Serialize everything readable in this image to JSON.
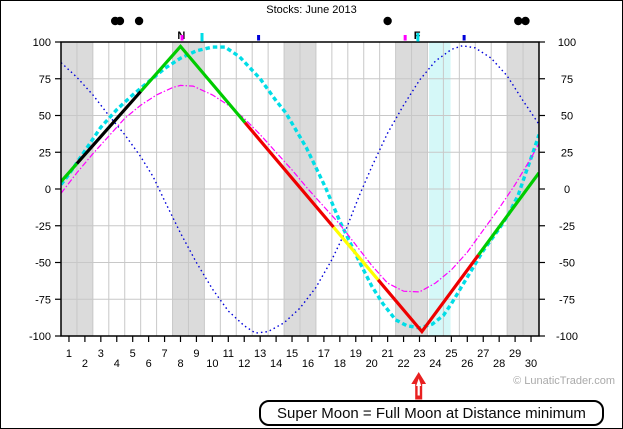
{
  "title": "Stocks: June 2013",
  "copyright": "© LunaticTrader.com",
  "annotation": "Super Moon = Full Moon at Distance minimum",
  "colors": {
    "background": "#ffffff",
    "grid": "#c8c8c8",
    "weekend_band": "#dbdbdb",
    "highlight_band": "#d5f8f8",
    "axis": "#000000",
    "blue_series": "#0000d9",
    "cyan_series": "#00dde6",
    "magenta_series": "#ff00ff",
    "green_segment": "#00cc00",
    "black_segment": "#000000",
    "red_segment": "#ee0000",
    "yellow_segment": "#ffff00",
    "arrow_red": "#e82020",
    "copyright_gray": "#aaaaaa"
  },
  "chart_data": {
    "type": "line",
    "title": "Stocks: June 2013",
    "grid": true,
    "x_axis": {
      "range_days": [
        0.5,
        30.5
      ],
      "day_labels": [
        1,
        2,
        3,
        4,
        5,
        6,
        7,
        8,
        9,
        10,
        11,
        12,
        13,
        14,
        15,
        16,
        17,
        18,
        19,
        20,
        21,
        22,
        23,
        24,
        25,
        26,
        27,
        28,
        29,
        30
      ]
    },
    "y_axis": {
      "range": [
        -100,
        100
      ],
      "ticks": [
        100,
        75,
        50,
        25,
        0,
        -25,
        -50,
        -75,
        -100
      ]
    },
    "weekend_bands_days": [
      [
        1,
        2
      ],
      [
        8,
        9
      ],
      [
        15,
        16
      ],
      [
        22,
        23
      ],
      [
        29,
        30
      ]
    ],
    "highlight_band": {
      "start_day": 23.6,
      "end_day": 24.95
    },
    "series": [
      {
        "name": "blue-dotted-cycle",
        "style": "dotted",
        "width": 1.4,
        "color_key": "blue_series",
        "points": [
          [
            0.5,
            86
          ],
          [
            1.5,
            76
          ],
          [
            2.5,
            64
          ],
          [
            3.5,
            50
          ],
          [
            4.5,
            37
          ],
          [
            5.5,
            22
          ],
          [
            6.3,
            8
          ],
          [
            7,
            -8
          ],
          [
            8,
            -30
          ],
          [
            9,
            -50
          ],
          [
            10,
            -68
          ],
          [
            11,
            -83
          ],
          [
            12,
            -93
          ],
          [
            12.7,
            -98
          ],
          [
            13.5,
            -97
          ],
          [
            14.5,
            -91
          ],
          [
            15.5,
            -81
          ],
          [
            16.5,
            -67
          ],
          [
            17.5,
            -48
          ],
          [
            18.3,
            -30
          ],
          [
            19.2,
            -5
          ],
          [
            20,
            15
          ],
          [
            21,
            38
          ],
          [
            22,
            57
          ],
          [
            23,
            74
          ],
          [
            24,
            87
          ],
          [
            25,
            95
          ],
          [
            25.7,
            97.5
          ],
          [
            26.5,
            96
          ],
          [
            27.5,
            89
          ],
          [
            28.5,
            77
          ],
          [
            29.5,
            60
          ],
          [
            30.5,
            44
          ]
        ]
      },
      {
        "name": "cyan-dashed-cycle",
        "style": "dashed",
        "width": 3.4,
        "color_key": "cyan_series",
        "points": [
          [
            0.5,
            3
          ],
          [
            1,
            10
          ],
          [
            2,
            26
          ],
          [
            3,
            42
          ],
          [
            4,
            54
          ],
          [
            5,
            64
          ],
          [
            6,
            73
          ],
          [
            7,
            82
          ],
          [
            8,
            89
          ],
          [
            9,
            94
          ],
          [
            10,
            96.5
          ],
          [
            10.8,
            96.5
          ],
          [
            11.7,
            90
          ],
          [
            13,
            75
          ],
          [
            14,
            60
          ],
          [
            14.6,
            52
          ],
          [
            15.9,
            28
          ],
          [
            17.1,
            1
          ],
          [
            18,
            -22
          ],
          [
            19.2,
            -49
          ],
          [
            20,
            -66
          ],
          [
            20.7,
            -78
          ],
          [
            21.5,
            -89
          ],
          [
            22.2,
            -93
          ],
          [
            23,
            -94.5
          ],
          [
            23.8,
            -92
          ],
          [
            24.5,
            -86
          ],
          [
            25,
            -78
          ],
          [
            26,
            -60
          ],
          [
            27,
            -42
          ],
          [
            28,
            -27
          ],
          [
            28.6,
            -17
          ],
          [
            29.2,
            -4
          ],
          [
            29.7,
            12
          ],
          [
            30.1,
            24
          ],
          [
            30.5,
            37
          ]
        ]
      },
      {
        "name": "magenta-thin-cycle",
        "style": "dashdot",
        "width": 1.2,
        "color_key": "magenta_series",
        "points": [
          [
            0.5,
            -3
          ],
          [
            1.5,
            11
          ],
          [
            2.5,
            24
          ],
          [
            3.5,
            36
          ],
          [
            4.5,
            48
          ],
          [
            5.5,
            57
          ],
          [
            6.5,
            64
          ],
          [
            7.5,
            69
          ],
          [
            8,
            70.5
          ],
          [
            8.8,
            70
          ],
          [
            10,
            64
          ],
          [
            11,
            57
          ],
          [
            12,
            48
          ],
          [
            13,
            37
          ],
          [
            14,
            25
          ],
          [
            15,
            13
          ],
          [
            16,
            0
          ],
          [
            17,
            -12
          ],
          [
            18,
            -24
          ],
          [
            19,
            -38
          ],
          [
            20,
            -52
          ],
          [
            21,
            -64
          ],
          [
            22,
            -69.5
          ],
          [
            23,
            -70
          ],
          [
            24,
            -64
          ],
          [
            25,
            -55
          ],
          [
            26,
            -43
          ],
          [
            27,
            -28
          ],
          [
            28,
            -13
          ],
          [
            29,
            3
          ],
          [
            30,
            21
          ],
          [
            30.5,
            31
          ]
        ]
      }
    ],
    "segmented_line": {
      "name": "market-projection-line",
      "width": 3.2,
      "vertices": [
        [
          0.5,
          5
        ],
        [
          8,
          97
        ],
        [
          23.15,
          -97
        ],
        [
          30.5,
          11
        ]
      ],
      "color_segments": [
        {
          "from": 0.5,
          "to": 1.5,
          "color_key": "green_segment"
        },
        {
          "from": 1.5,
          "to": 5.5,
          "color_key": "black_segment"
        },
        {
          "from": 5.5,
          "to": 12.05,
          "color_key": "green_segment"
        },
        {
          "from": 12.05,
          "to": 17.6,
          "color_key": "red_segment"
        },
        {
          "from": 17.6,
          "to": 20.4,
          "color_key": "yellow_segment"
        },
        {
          "from": 20.4,
          "to": 26.7,
          "color_key": "red_segment"
        },
        {
          "from": 26.7,
          "to": 30.5,
          "color_key": "green_segment"
        }
      ]
    },
    "top_markers": {
      "dots_days": [
        3.9,
        4.2,
        5.4,
        21.0,
        29.2,
        29.65
      ],
      "phase_labels": [
        {
          "label": "N",
          "day": 8.05
        },
        {
          "label": "F",
          "day": 22.85
        }
      ],
      "ticks": [
        {
          "day": 8.1,
          "color_key": "magenta_series"
        },
        {
          "day": 9.35,
          "color_key": "cyan_series"
        },
        {
          "day": 12.9,
          "color_key": "blue_series"
        },
        {
          "day": 22.1,
          "color_key": "magenta_series"
        },
        {
          "day": 22.9,
          "color_key": "cyan_series"
        },
        {
          "day": 25.8,
          "color_key": "blue_series"
        }
      ]
    },
    "arrow": {
      "day": 22.95
    }
  }
}
